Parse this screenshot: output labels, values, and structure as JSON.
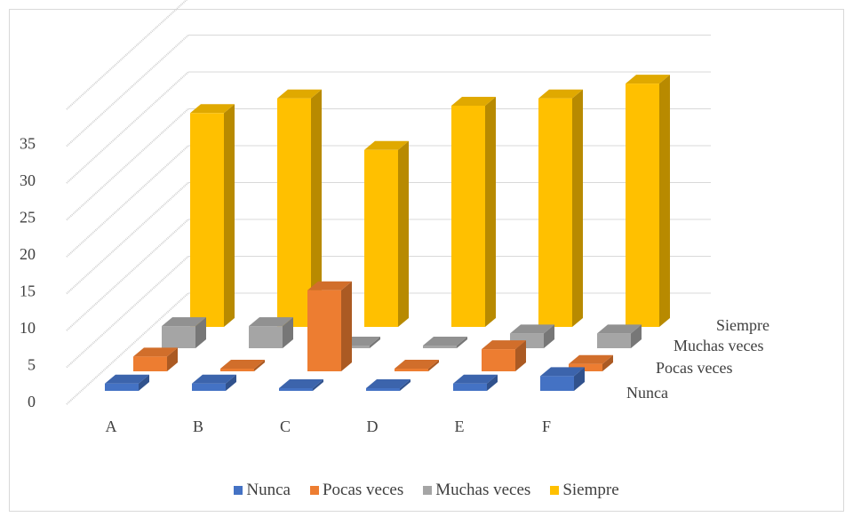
{
  "chart_data": {
    "type": "bar",
    "subtype": "3d-column",
    "categories": [
      "A",
      "B",
      "C",
      "D",
      "E",
      "F"
    ],
    "series": [
      {
        "name": "Nunca",
        "color": "#4472C4",
        "values": [
          1,
          1,
          0,
          0,
          1,
          2
        ]
      },
      {
        "name": "Pocas veces",
        "color": "#ED7D31",
        "values": [
          2,
          0,
          11,
          0,
          3,
          1
        ]
      },
      {
        "name": "Muchas veces",
        "color": "#A5A5A5",
        "values": [
          3,
          3,
          0,
          0,
          2,
          2
        ]
      },
      {
        "name": "Siempre",
        "color": "#FFC000",
        "values": [
          29,
          31,
          24,
          30,
          31,
          33
        ]
      }
    ],
    "y_ticks": [
      "0",
      "5",
      "10",
      "15",
      "20",
      "25",
      "30",
      "35"
    ],
    "ylim": [
      0,
      35
    ],
    "grid": true,
    "legend": "bottom",
    "title": "",
    "xlabel": "",
    "ylabel": ""
  }
}
